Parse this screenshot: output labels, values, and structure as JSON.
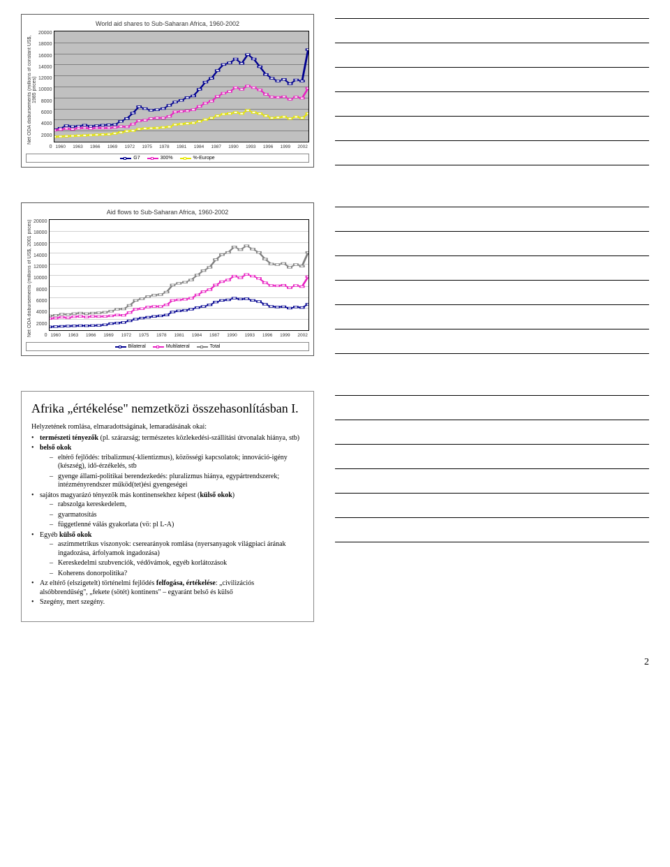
{
  "chart1": {
    "title": "World aid shares to Sub-Saharan Africa, 1960-2002",
    "ylabel": "Net ODA disbursements (millions of constant US$, 1985 prices)",
    "ytick_max": 20000,
    "ytick_step": 2000,
    "yticks": [
      "20000",
      "18000",
      "16000",
      "14000",
      "12000",
      "10000",
      "8000",
      "6000",
      "4000",
      "2000",
      "0"
    ],
    "xticks": [
      "1960",
      "1963",
      "1966",
      "1969",
      "1972",
      "1975",
      "1978",
      "1981",
      "1984",
      "1987",
      "1990",
      "1993",
      "1996",
      "1999",
      "2002"
    ],
    "legend": [
      {
        "label": "G7",
        "color": "#000090"
      },
      {
        "label": "300%",
        "color": "#e81fc1"
      },
      {
        "label": "%-Europe",
        "color": "#e6e600"
      }
    ],
    "series": {
      "g7": [
        2200,
        2450,
        2900,
        2750,
        2800,
        3000,
        2800,
        2900,
        3000,
        3050,
        3100,
        3700,
        4200,
        5200,
        6350,
        6000,
        5700,
        5800,
        6000,
        6600,
        7200,
        7500,
        8000,
        8300,
        9500,
        10800,
        11500,
        12900,
        14000,
        14300,
        15000,
        14200,
        15800,
        15000,
        13600,
        12200,
        11500,
        11000,
        11300,
        10500,
        11200,
        11000,
        16700
      ],
      "s300": [
        2100,
        2200,
        2350,
        2250,
        2450,
        2500,
        2400,
        2500,
        2480,
        2500,
        2600,
        2750,
        2700,
        3200,
        3800,
        3900,
        4200,
        4300,
        4300,
        4600,
        5400,
        5500,
        5600,
        5800,
        6400,
        7000,
        7350,
        8200,
        8800,
        9100,
        9800,
        9500,
        10100,
        9800,
        9400,
        8600,
        8100,
        8050,
        8150,
        7700,
        8100,
        7900,
        9700
      ],
      "europe": [
        900,
        950,
        1000,
        1050,
        1100,
        1150,
        1200,
        1250,
        1300,
        1350,
        1500,
        1700,
        1900,
        2000,
        2300,
        2400,
        2450,
        2500,
        2600,
        2700,
        3100,
        3200,
        3300,
        3400,
        3700,
        4000,
        4300,
        4700,
        5000,
        5100,
        5300,
        5100,
        5700,
        5300,
        5100,
        4700,
        4300,
        4400,
        4500,
        4200,
        4500,
        4300,
        5100
      ]
    },
    "colors": {
      "g7": "#000090",
      "s300": "#e81fc1",
      "europe": "#e6e600"
    },
    "plot_bg": "#c0c0c0",
    "grid_color": "#808080"
  },
  "chart2": {
    "title": "Aid flows to Sub-Saharan Africa, 1960-2002",
    "ylabel": "Net ODA disbursements (millions of US$, 2001 prices)",
    "ytick_max": 20000,
    "ytick_step": 2000,
    "yticks": [
      "20000",
      "18000",
      "16000",
      "14000",
      "12000",
      "10000",
      "8000",
      "6000",
      "4000",
      "2000",
      "0"
    ],
    "xticks": [
      "1960",
      "1963",
      "1966",
      "1969",
      "1972",
      "1975",
      "1978",
      "1981",
      "1984",
      "1987",
      "1990",
      "1993",
      "1996",
      "1999",
      "2002"
    ],
    "legend": [
      {
        "label": "Bilateral",
        "color": "#000090"
      },
      {
        "label": "Multilateral",
        "color": "#e81fc1"
      },
      {
        "label": "Total",
        "color": "#808080"
      }
    ],
    "series": {
      "bilateral": [
        600,
        650,
        700,
        750,
        780,
        820,
        800,
        840,
        870,
        980,
        1200,
        1300,
        1400,
        1700,
        2000,
        2200,
        2350,
        2500,
        2600,
        2750,
        3300,
        3500,
        3600,
        3800,
        4100,
        4300,
        4600,
        5100,
        5400,
        5500,
        5800,
        5650,
        5700,
        5400,
        5200,
        4700,
        4300,
        4200,
        4250,
        4000,
        4200,
        4100,
        4700
      ],
      "multilateral": [
        2100,
        2200,
        2350,
        2250,
        2450,
        2500,
        2400,
        2500,
        2480,
        2500,
        2600,
        2750,
        2700,
        3200,
        3800,
        3900,
        4200,
        4300,
        4300,
        4600,
        5400,
        5500,
        5600,
        5800,
        6400,
        7000,
        7350,
        8200,
        8800,
        9100,
        9800,
        9500,
        10100,
        9800,
        9400,
        8600,
        8100,
        8050,
        8150,
        7700,
        8100,
        7900,
        9700
      ],
      "total": [
        2600,
        2700,
        2900,
        2850,
        3000,
        3100,
        3000,
        3100,
        3150,
        3250,
        3450,
        3800,
        3850,
        4500,
        5400,
        5700,
        6100,
        6350,
        6450,
        6900,
        8200,
        8500,
        8700,
        9100,
        10000,
        10800,
        11400,
        12800,
        13700,
        14100,
        15100,
        14600,
        15300,
        14700,
        14100,
        12900,
        12000,
        11900,
        12100,
        11400,
        11900,
        11600,
        14100
      ]
    },
    "colors": {
      "bilateral": "#000090",
      "multilateral": "#e81fc1",
      "total": "#808080"
    },
    "plot_bg": "#ffffff",
    "grid_color": "#d0d0d0"
  },
  "slide3": {
    "title": "Afrika „értékelése\" nemzetközi összehasonlításban I.",
    "intro": "Helyzetének romlása, elmaradottságának, lemaradásának okai:",
    "bullets": [
      {
        "t": "bullet",
        "html": "<b>természeti tényezők</b> (pl. szárazság; természetes közlekedési-szállítási útvonalak hiánya, stb)"
      },
      {
        "t": "bullet",
        "html": "<b>belső okok</b>",
        "children": [
          {
            "t": "dash",
            "html": "eltérő fejlődés: tribalizmus(-klientizmus), közösségi kapcsolatok; innováció-igény (készség), idő-érzékelés, stb"
          },
          {
            "t": "dash",
            "html": "gyenge állami-politikai berendezkedés: pluralizmus hiánya, egypártrendszerek; intézményrendszer működ(tet)ési gyengeségei"
          }
        ]
      },
      {
        "t": "bullet",
        "html": "sajátos magyarázó tényezők más kontinensekhez képest (<b>külső okok</b>)",
        "children": [
          {
            "t": "dash",
            "html": "rabszolga kereskedelem,"
          },
          {
            "t": "dash",
            "html": "gyarmatosítás"
          },
          {
            "t": "dash",
            "html": "függetlenné válás gyakorlata (vö: pl L-A)"
          }
        ]
      },
      {
        "t": "bullet",
        "html": "Egyéb <b>külső okok</b>",
        "children": [
          {
            "t": "dash",
            "html": "aszimmetrikus viszonyok: cserearányok romlása (nyersanyagok világpiaci árának ingadozása, árfolyamok ingadozása)"
          },
          {
            "t": "dash",
            "html": "Kereskedelmi szubvenciók, védővámok, egyéb korlátozások"
          },
          {
            "t": "dash",
            "html": "Koherens donorpolitika?"
          }
        ]
      },
      {
        "t": "bullet",
        "html": "Az eltérő (elszigetelt) történelmi fejlődés <b>felfogása, értékelése</b>: „civilizációs alsóbbrendűség\", „fekete (sötét) kontinens\" – egyaránt belső és külső"
      },
      {
        "t": "bullet",
        "html": "Szegény, mert szegény."
      }
    ]
  },
  "page_number": "2"
}
